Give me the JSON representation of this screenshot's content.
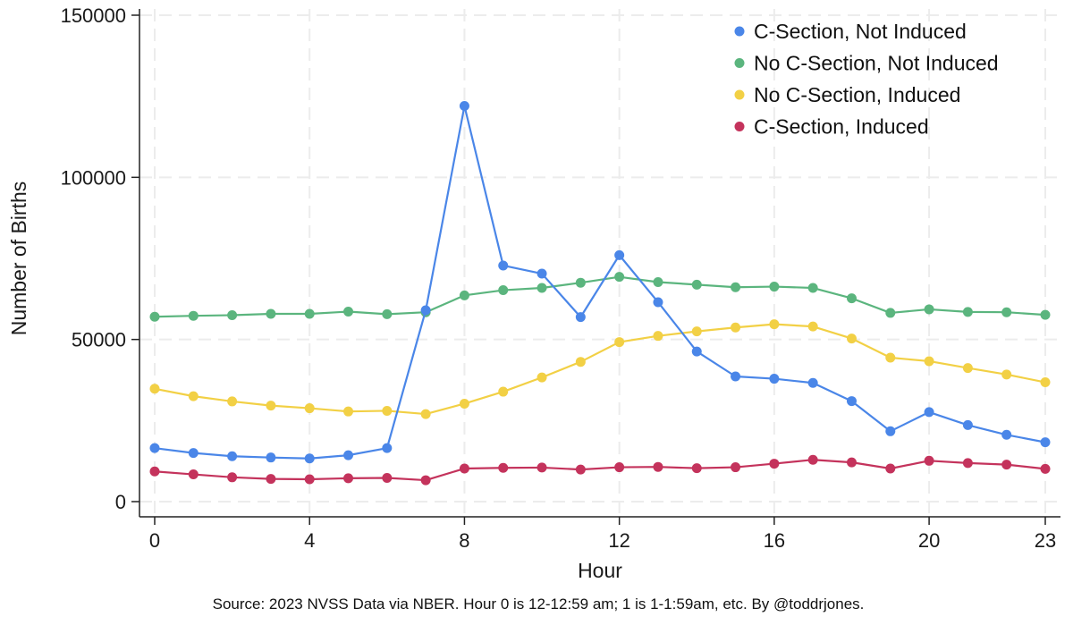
{
  "chart_data": {
    "type": "line",
    "xlabel": "Hour",
    "ylabel": "Number of Births",
    "note": "Source: 2023 NVSS Data via NBER. Hour 0 is 12-12:59 am; 1 is 1-1:59am, etc. By @toddrjones.",
    "xlim": [
      0,
      23
    ],
    "ylim": [
      0,
      150000
    ],
    "x_ticks": [
      0,
      4,
      8,
      12,
      16,
      20,
      23
    ],
    "y_ticks": [
      0,
      50000,
      100000,
      150000
    ],
    "grid": true,
    "legend_position": "top-right",
    "x": [
      0,
      1,
      2,
      3,
      4,
      5,
      6,
      7,
      8,
      9,
      10,
      11,
      12,
      13,
      14,
      15,
      16,
      17,
      18,
      19,
      20,
      21,
      22,
      23
    ],
    "series": [
      {
        "name": "C-Section, Not Induced",
        "color": "#4a86e8",
        "values": [
          16500,
          15000,
          14000,
          13600,
          13300,
          14300,
          16500,
          59000,
          122000,
          72800,
          70300,
          56900,
          76000,
          61500,
          46300,
          38600,
          37900,
          36600,
          31000,
          21700,
          27600,
          23600,
          20600,
          18300
        ]
      },
      {
        "name": "No C-Section, Not Induced",
        "color": "#5bb57e",
        "values": [
          57000,
          57300,
          57500,
          57900,
          57900,
          58600,
          57800,
          58400,
          63600,
          65200,
          65900,
          67500,
          69300,
          67700,
          66900,
          66100,
          66300,
          65900,
          62700,
          58200,
          59300,
          58500,
          58400,
          57600
        ]
      },
      {
        "name": "No C-Section, Induced",
        "color": "#f2d045",
        "values": [
          34800,
          32500,
          30900,
          29600,
          28800,
          27800,
          28000,
          27000,
          30200,
          33900,
          38300,
          43100,
          49200,
          51100,
          52500,
          53700,
          54700,
          54000,
          50300,
          44400,
          43300,
          41200,
          39200,
          36800
        ]
      },
      {
        "name": "C-Section, Induced",
        "color": "#c4335c",
        "values": [
          9300,
          8400,
          7500,
          7000,
          6900,
          7200,
          7300,
          6600,
          10200,
          10400,
          10500,
          9900,
          10600,
          10700,
          10300,
          10600,
          11700,
          12900,
          12100,
          10200,
          12600,
          11900,
          11400,
          10100
        ]
      }
    ]
  }
}
